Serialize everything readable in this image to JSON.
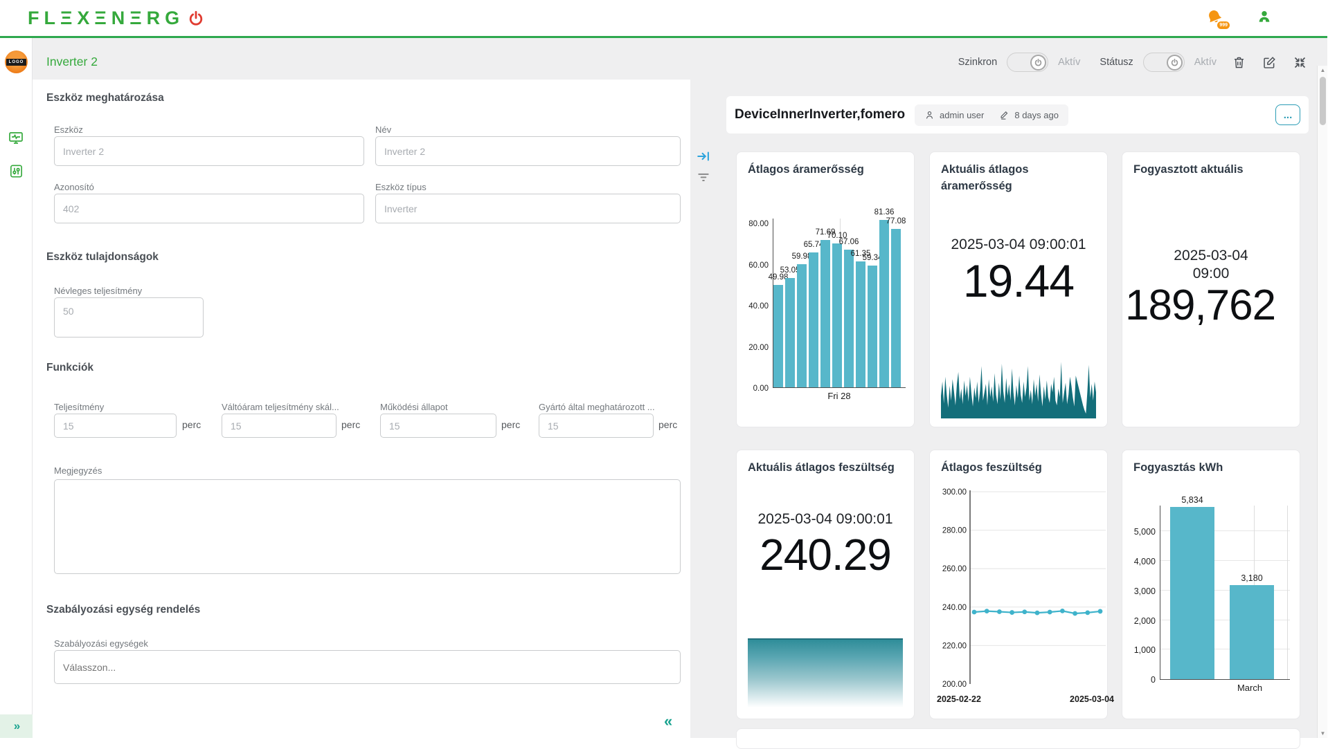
{
  "header": {
    "logo_text": "FLEXENERGO",
    "logo_wordmark": "FLΞXΞNΞRG",
    "notification_badge": "999",
    "icons": [
      "notification-bell-icon",
      "user-icon"
    ]
  },
  "sidebar": {
    "logo_text": "LOGO",
    "expand_chevron": "»",
    "icons": [
      "monitor-activity-icon",
      "control-panel-icon"
    ]
  },
  "toolbar": {
    "title": "Inverter 2",
    "szinkron_label": "Szinkron",
    "szinkron_state": "Aktív",
    "statusz_label": "Státusz",
    "statusz_state": "Aktív",
    "icons": [
      "trash-icon",
      "edit-icon",
      "collapse-icon"
    ]
  },
  "divider_icons": [
    "arrow-to-bar-icon",
    "filter-icon"
  ],
  "form": {
    "section_device": "Eszköz meghatározása",
    "eszkoz_label": "Eszköz",
    "eszkoz_value": "Inverter 2",
    "nev_label": "Név",
    "nev_value": "Inverter 2",
    "azonosito_label": "Azonosító",
    "azonosito_value": "402",
    "tipus_label": "Eszköz típus",
    "tipus_value": "Inverter",
    "section_props": "Eszköz tulajdonságok",
    "nevleges_label": "Névleges teljesítmény",
    "nevleges_value": "50",
    "section_funcs": "Funkciók",
    "funkciok": [
      {
        "label": "Teljesítmény",
        "value": "15",
        "unit": "perc"
      },
      {
        "label": "Váltóáram teljesítmény skál...",
        "value": "15",
        "unit": "perc"
      },
      {
        "label": "Működési állapot",
        "value": "15",
        "unit": "perc"
      },
      {
        "label": "Gyártó által meghatározott ...",
        "value": "15",
        "unit": "perc"
      }
    ],
    "megjegyzes_label": "Megjegyzés",
    "section_regulation": "Szabályozási egység rendelés",
    "szabalyozasi_label": "Szabályozási egységek",
    "szabalyozasi_placeholder": "Válasszon...",
    "collapse_chevron": "«"
  },
  "panel": {
    "title": "DeviceInnerInverter,fomero",
    "author": "admin user",
    "updated": "8 days ago",
    "menu_label": "..."
  },
  "scrollbar": {
    "up": "▲",
    "down": "▼"
  },
  "chart_data": [
    {
      "id": "avg-current-bars",
      "type": "bar",
      "title": "Átlagos áramerősség",
      "values": [
        49.98,
        53.05,
        59.98,
        65.74,
        71.69,
        70.1,
        67.06,
        61.35,
        59.34,
        81.36,
        77.08
      ],
      "labels": [
        "49.98",
        "53.05",
        "59.98",
        "65.74",
        "71.69",
        "70.10",
        "67.06",
        "61.35",
        "59.34",
        "81.36",
        "77.08"
      ],
      "y_ticks": [
        "0.00",
        "20.00",
        "40.00",
        "60.00",
        "80.00"
      ],
      "y_tick_values": [
        0,
        20,
        40,
        60,
        80
      ],
      "ylim": [
        0,
        82.5
      ],
      "x_label": "Fri 28",
      "bar_color": "#57b7ca",
      "grid": "vertical-center"
    },
    {
      "id": "current-now",
      "type": "area-sparkline",
      "title": "Aktuális átlagos áramerősség",
      "timestamp": "2025-03-04 09:00:01",
      "value": "19.44",
      "color": "#136e7a",
      "spark_values": [
        38,
        62,
        25,
        70,
        40,
        18,
        55,
        30,
        66,
        45,
        22,
        58,
        78,
        32,
        50,
        24,
        64,
        38,
        56,
        28,
        70,
        42,
        20,
        52,
        34,
        62,
        26,
        48,
        88,
        30,
        44,
        58,
        22,
        66,
        36,
        54,
        28,
        76,
        40,
        24,
        60,
        32,
        92,
        46,
        26,
        68,
        38,
        58,
        30,
        84,
        44,
        22,
        56,
        34,
        72,
        40,
        26,
        62,
        36,
        52,
        88,
        30,
        48,
        24,
        66,
        38,
        58,
        28,
        74,
        42,
        20,
        54,
        32,
        64,
        36,
        26,
        58,
        44,
        70,
        30,
        22,
        50,
        36,
        95,
        26,
        44,
        60,
        24,
        40,
        70,
        55,
        35,
        20,
        72,
        62,
        52,
        42,
        32,
        22,
        14,
        8,
        45,
        90,
        35,
        58,
        30,
        62,
        44
      ]
    },
    {
      "id": "consumed-now",
      "type": "big-number",
      "title": "Fogyasztott aktuális",
      "timestamp_line1": "2025-03-04",
      "timestamp_line2": "09:00",
      "value": "189,762"
    },
    {
      "id": "voltage-now",
      "type": "gradient-area",
      "title": "Aktuális átlagos feszültség",
      "timestamp": "2025-03-04 09:00:01",
      "value": "240.29",
      "color": "#2f8d99"
    },
    {
      "id": "avg-voltage-line",
      "type": "line",
      "title": "Átlagos feszültség",
      "x": [
        0,
        1,
        2,
        3,
        4,
        5,
        6,
        7,
        8,
        9,
        10
      ],
      "values": [
        237.4,
        237.9,
        237.6,
        237.2,
        237.5,
        237.0,
        237.4,
        238.0,
        236.7,
        237.1,
        237.8
      ],
      "y_ticks": [
        "200.00",
        "220.00",
        "240.00",
        "260.00",
        "280.00",
        "300.00"
      ],
      "y_tick_values": [
        200,
        220,
        240,
        260,
        280,
        300
      ],
      "ylim": [
        200,
        300
      ],
      "x_tick_labels": [
        "2025-02-22",
        "2025-03-04"
      ],
      "line_color": "#3fb3cb",
      "grid": "horizontal"
    },
    {
      "id": "consumption-kwh",
      "type": "bar",
      "title": "Fogyasztás kWh",
      "values": [
        5834,
        3180
      ],
      "labels": [
        "5,834",
        "3,180"
      ],
      "y_ticks": [
        "0",
        "1,000",
        "2,000",
        "3,000",
        "4,000",
        "5,000"
      ],
      "y_tick_values": [
        0,
        1000,
        2000,
        3000,
        4000,
        5000
      ],
      "ylim": [
        0,
        5900
      ],
      "x_label": "March",
      "bar_color": "#57b7ca",
      "grid": "horizontal"
    }
  ]
}
